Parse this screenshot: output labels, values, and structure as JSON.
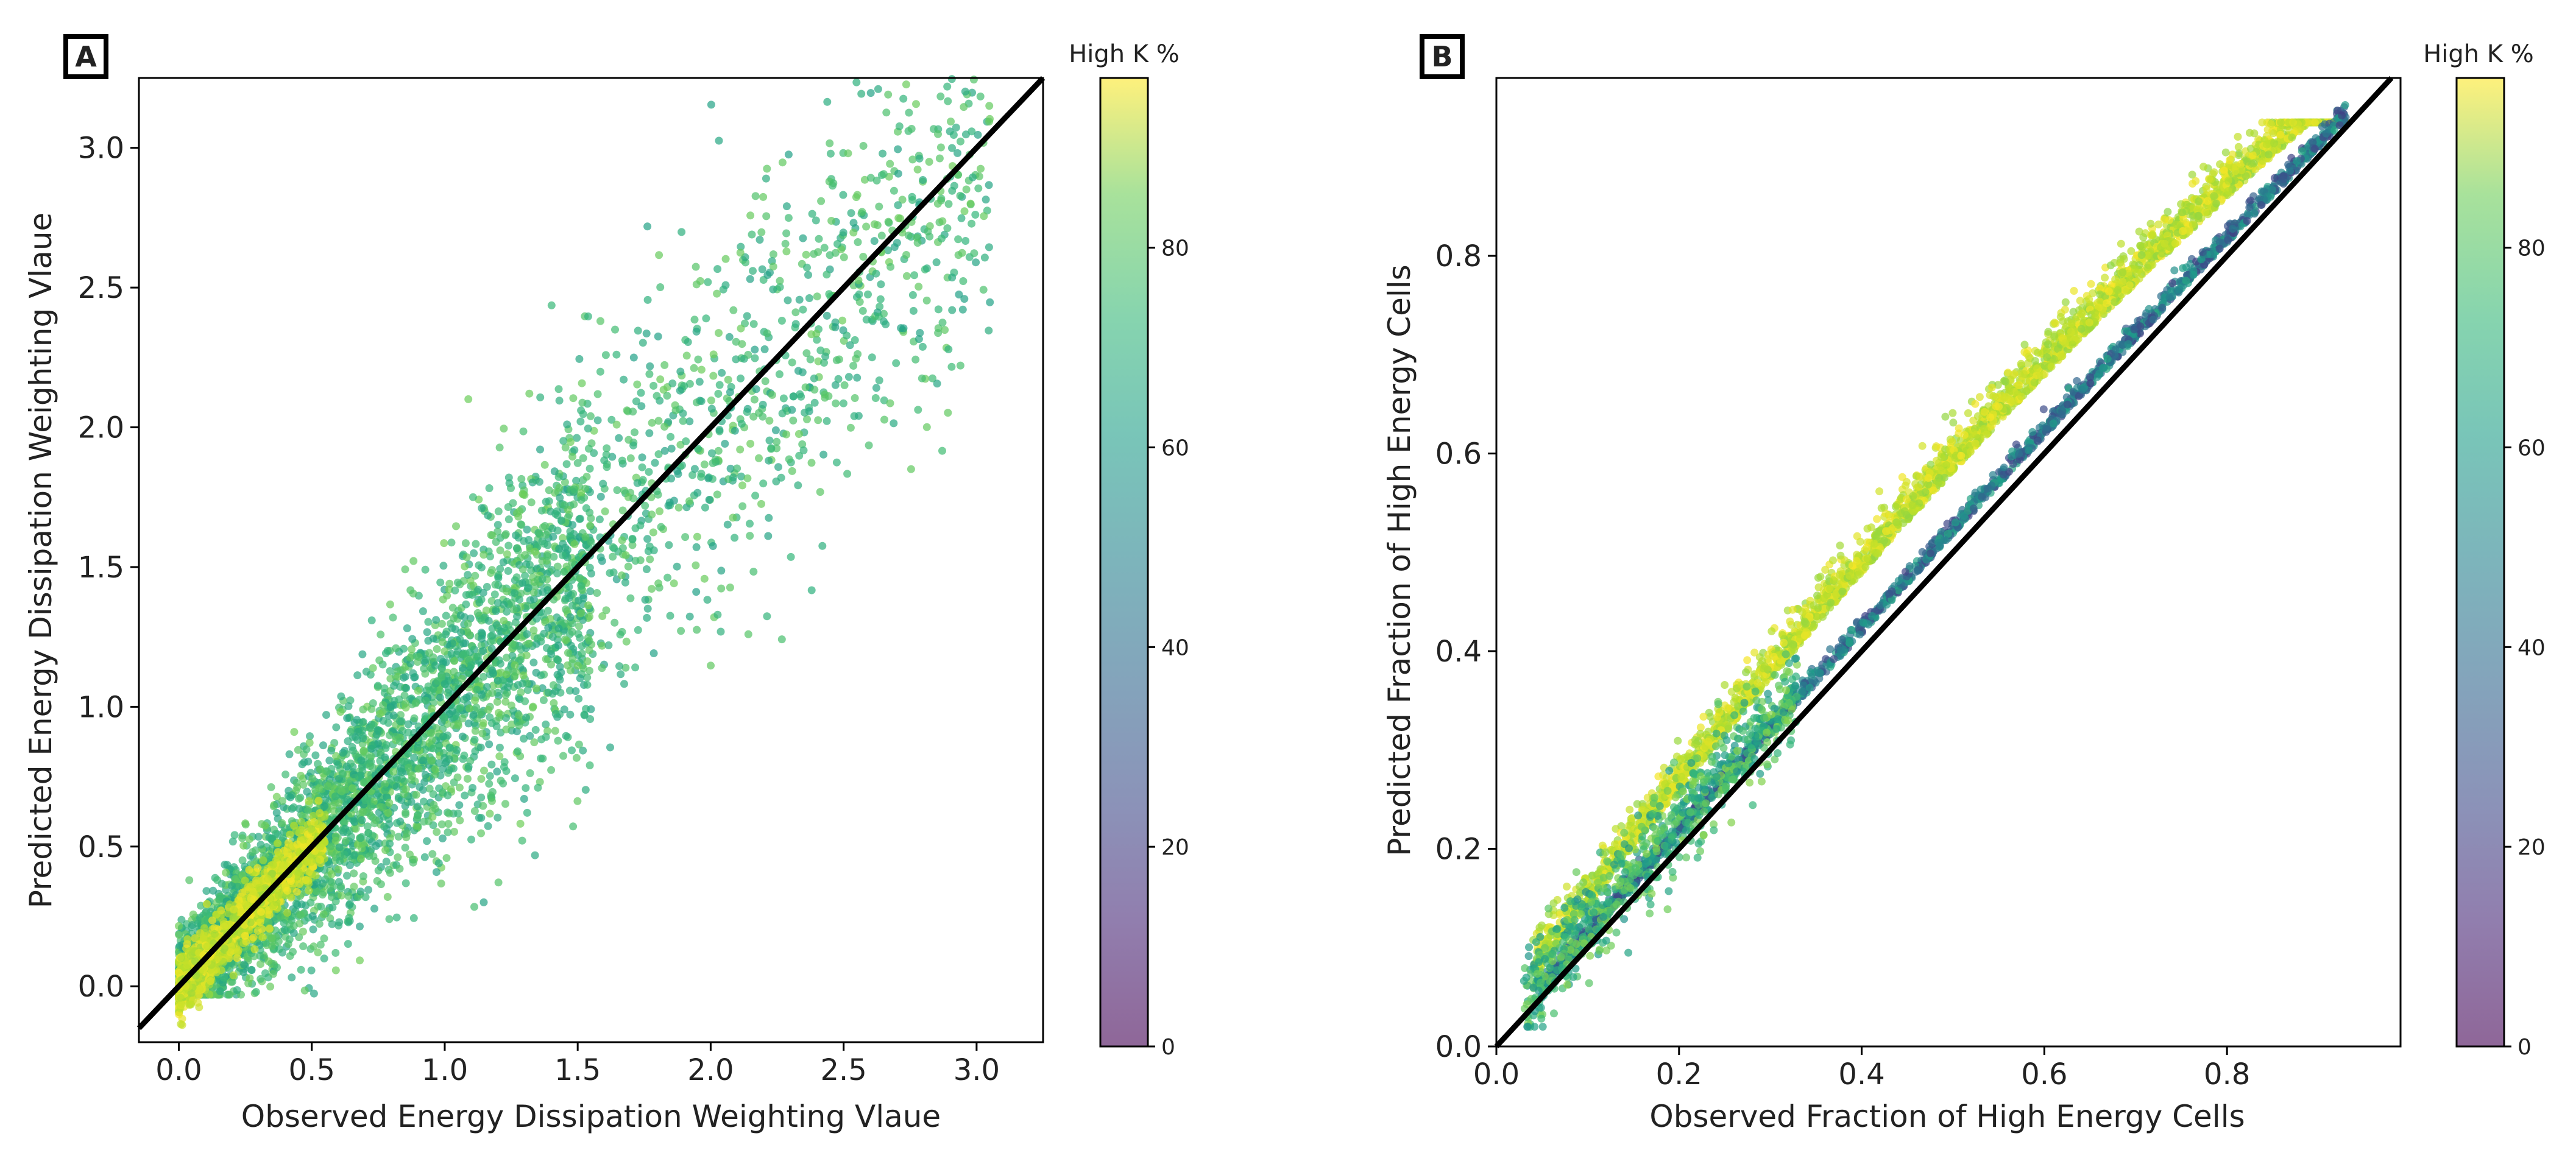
{
  "chart_data": [
    {
      "type": "scatter",
      "panel_label": "A",
      "xlabel": "Observed Energy Dissipation Weighting Vlaue",
      "ylabel": "Predicted Energy Dissipation Weighting Vlaue",
      "xlim": [
        -0.15,
        3.25
      ],
      "ylim": [
        -0.2,
        3.25
      ],
      "xticks": [
        0.0,
        0.5,
        1.0,
        1.5,
        2.0,
        2.5,
        3.0
      ],
      "xtick_labels": [
        "0.0",
        "0.5",
        "1.0",
        "1.5",
        "2.0",
        "2.5",
        "3.0"
      ],
      "yticks": [
        0.0,
        0.5,
        1.0,
        1.5,
        2.0,
        2.5,
        3.0
      ],
      "ytick_labels": [
        "0.0",
        "0.5",
        "1.0",
        "1.5",
        "2.0",
        "2.5",
        "3.0"
      ],
      "reference_line": "y = x",
      "colorbar": {
        "label": "High K %",
        "range": [
          0,
          97
        ],
        "ticks": [
          0,
          20,
          40,
          60,
          80
        ],
        "tick_labels": [
          "0",
          "20",
          "40",
          "60",
          "80"
        ]
      },
      "series": [
        {
          "name": "dense core (high K, near diagonal)",
          "x_range": [
            0.0,
            0.5
          ],
          "y_range": [
            -0.05,
            0.55
          ],
          "color_value_approx": 92
        },
        {
          "name": "bulk cloud",
          "x_range": [
            0.0,
            1.6
          ],
          "y_range": [
            0.0,
            1.6
          ],
          "color_value_approx": 62
        },
        {
          "name": "sparse upper cloud",
          "x_range": [
            1.5,
            3.05
          ],
          "y_range": [
            0.9,
            3.05
          ],
          "color_value_approx": 58
        }
      ]
    },
    {
      "type": "scatter",
      "panel_label": "B",
      "xlabel": "Observed Fraction of High Energy Cells",
      "ylabel": "Predicted Fraction of High Energy Cells",
      "xlim": [
        0.0,
        0.99
      ],
      "ylim": [
        0.0,
        0.98
      ],
      "xticks": [
        0.0,
        0.2,
        0.4,
        0.6,
        0.8
      ],
      "xtick_labels": [
        "0.0",
        "0.2",
        "0.4",
        "0.6",
        "0.8"
      ],
      "yticks": [
        0.0,
        0.2,
        0.4,
        0.6,
        0.8
      ],
      "ytick_labels": [
        "0.0",
        "0.2",
        "0.4",
        "0.6",
        "0.8"
      ],
      "reference_line": "y = x",
      "colorbar": {
        "label": "High K %",
        "range": [
          0,
          97
        ],
        "ticks": [
          0,
          20,
          40,
          60,
          80
        ],
        "tick_labels": [
          "0",
          "20",
          "40",
          "60",
          "80"
        ]
      },
      "series": [
        {
          "name": "high K band (above diagonal)",
          "x_range": [
            0.03,
            0.93
          ],
          "y_range": [
            0.04,
            0.93
          ],
          "color_value_approx": 88
        },
        {
          "name": "mid K band",
          "x_range": [
            0.03,
            0.93
          ],
          "y_range": [
            0.03,
            0.92
          ],
          "color_value_approx": 60
        },
        {
          "name": "low K band (on diagonal)",
          "x_range": [
            0.3,
            0.93
          ],
          "y_range": [
            0.3,
            0.93
          ],
          "color_value_approx": 25
        }
      ]
    }
  ]
}
